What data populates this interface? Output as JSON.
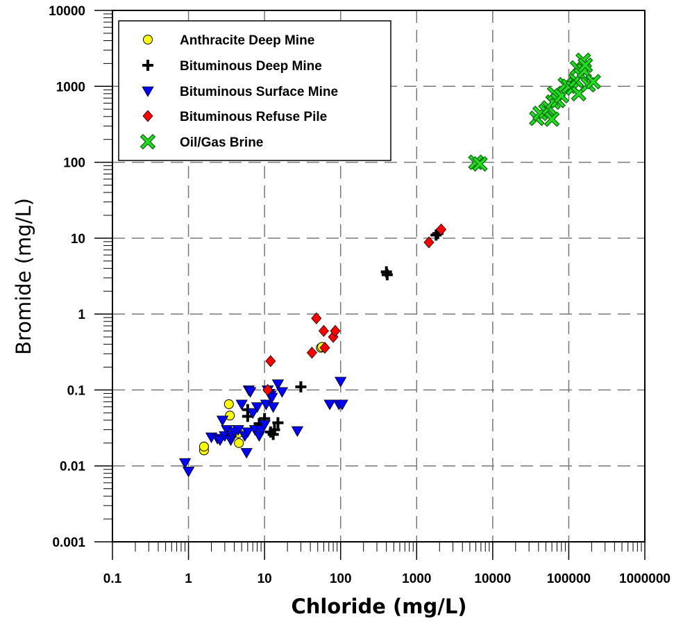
{
  "chart_data": {
    "type": "scatter",
    "title": "",
    "xlabel": "Chloride (mg/L)",
    "ylabel": "Bromide (mg/L)",
    "xscale": "log",
    "yscale": "log",
    "xlim": [
      0.1,
      1000000
    ],
    "ylim": [
      0.001,
      10000
    ],
    "grid": true,
    "legend_position": "top-left",
    "x_tick_labels": [
      "0.1",
      "1",
      "10",
      "100",
      "1000",
      "10000",
      "100000",
      "1000000"
    ],
    "y_tick_labels": [
      "0.001",
      "0.01",
      "0.1",
      "1",
      "10",
      "100",
      "1000",
      "10000"
    ],
    "series": [
      {
        "name": "Anthracite Deep Mine",
        "marker": "circle",
        "color": "#ffff00",
        "points": [
          [
            1.6,
            0.016
          ],
          [
            1.6,
            0.018
          ],
          [
            3.4,
            0.065
          ],
          [
            3.5,
            0.046
          ],
          [
            4.5,
            0.027
          ],
          [
            4.6,
            0.02
          ],
          [
            55,
            0.36
          ],
          [
            57,
            0.37
          ]
        ]
      },
      {
        "name": "Bituminous Deep Mine",
        "marker": "plus",
        "color": "#000000",
        "points": [
          [
            6.0,
            0.045
          ],
          [
            6.0,
            0.055
          ],
          [
            8.5,
            0.036
          ],
          [
            10,
            0.042
          ],
          [
            12,
            0.028
          ],
          [
            13,
            0.026
          ],
          [
            13.5,
            0.03
          ],
          [
            15,
            0.037
          ],
          [
            30,
            0.11
          ],
          [
            400,
            3.6
          ],
          [
            410,
            3.3
          ],
          [
            1800,
            11
          ],
          [
            1900,
            11.5
          ]
        ]
      },
      {
        "name": "Bituminous Surface Mine",
        "marker": "triangle-down",
        "color": "#0000ff",
        "points": [
          [
            0.9,
            0.011
          ],
          [
            1.0,
            0.0085
          ],
          [
            2.0,
            0.024
          ],
          [
            2.4,
            0.023
          ],
          [
            2.6,
            0.022
          ],
          [
            2.8,
            0.04
          ],
          [
            3.0,
            0.025
          ],
          [
            3.2,
            0.03
          ],
          [
            3.6,
            0.022
          ],
          [
            3.8,
            0.025
          ],
          [
            4.0,
            0.028
          ],
          [
            4.5,
            0.03
          ],
          [
            5.0,
            0.065
          ],
          [
            5.5,
            0.025
          ],
          [
            5.8,
            0.015
          ],
          [
            6.0,
            0.028
          ],
          [
            6.2,
            0.1
          ],
          [
            6.5,
            0.095
          ],
          [
            7.0,
            0.05
          ],
          [
            7.5,
            0.03
          ],
          [
            8.0,
            0.06
          ],
          [
            8.5,
            0.025
          ],
          [
            9.0,
            0.03
          ],
          [
            10,
            0.035
          ],
          [
            10.5,
            0.065
          ],
          [
            11,
            0.1
          ],
          [
            11.5,
            0.09
          ],
          [
            12,
            0.085
          ],
          [
            12.5,
            0.08
          ],
          [
            13,
            0.06
          ],
          [
            15,
            0.12
          ],
          [
            17,
            0.095
          ],
          [
            27,
            0.029
          ],
          [
            72,
            0.065
          ],
          [
            95,
            0.065
          ],
          [
            100,
            0.13
          ],
          [
            105,
            0.065
          ]
        ]
      },
      {
        "name": "Bituminous Refuse Pile",
        "marker": "diamond",
        "color": "#ff0000",
        "points": [
          [
            11,
            0.1
          ],
          [
            12,
            0.24
          ],
          [
            42,
            0.31
          ],
          [
            48,
            0.88
          ],
          [
            60,
            0.6
          ],
          [
            62,
            0.36
          ],
          [
            80,
            0.5
          ],
          [
            85,
            0.6
          ],
          [
            1450,
            8.8
          ],
          [
            2100,
            13
          ]
        ]
      },
      {
        "name": "Oil/Gas Brine",
        "marker": "x",
        "color": "#22dd22",
        "points": [
          [
            6000,
            100
          ],
          [
            6800,
            95
          ],
          [
            38000,
            380
          ],
          [
            42000,
            440
          ],
          [
            50000,
            470
          ],
          [
            55000,
            520
          ],
          [
            60000,
            370
          ],
          [
            62000,
            620
          ],
          [
            65000,
            800
          ],
          [
            72000,
            650
          ],
          [
            80000,
            750
          ],
          [
            90000,
            1050
          ],
          [
            100000,
            1000
          ],
          [
            115000,
            950
          ],
          [
            125000,
            1200
          ],
          [
            130000,
            1750
          ],
          [
            135000,
            800
          ],
          [
            145000,
            1400
          ],
          [
            155000,
            2200
          ],
          [
            160000,
            1600
          ],
          [
            165000,
            1900
          ],
          [
            180000,
            1050
          ],
          [
            210000,
            1150
          ]
        ]
      }
    ]
  }
}
